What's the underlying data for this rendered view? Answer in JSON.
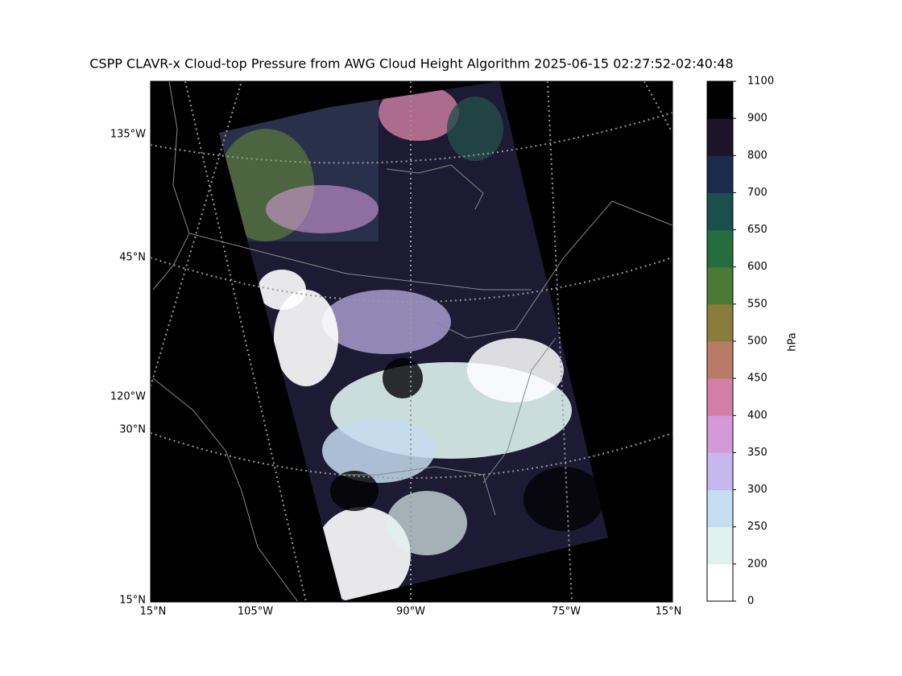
{
  "title": "CSPP CLAVR-x Cloud-top Pressure from AWG Cloud Height Algorithm 2025-06-15 02:27:52-02:40:48",
  "map": {
    "left_labels": [
      "135°W",
      "45°N",
      "120°W",
      "30°N",
      "15°N"
    ],
    "bottom_labels": [
      "15°N",
      "105°W",
      "90°W",
      "75°W",
      "15°N"
    ]
  },
  "colorbar": {
    "label": "hPa",
    "ticks": [
      0,
      200,
      250,
      300,
      350,
      400,
      450,
      500,
      550,
      600,
      650,
      700,
      800,
      900,
      1100
    ],
    "colors": [
      "#ffffff",
      "#dff2ee",
      "#c6dcf0",
      "#c4b8ee",
      "#d49ad8",
      "#d27fa5",
      "#b97a68",
      "#8a7c3a",
      "#4a7a33",
      "#246b3e",
      "#194f4d",
      "#1c2b4c",
      "#1d1429",
      "#000000"
    ]
  }
}
